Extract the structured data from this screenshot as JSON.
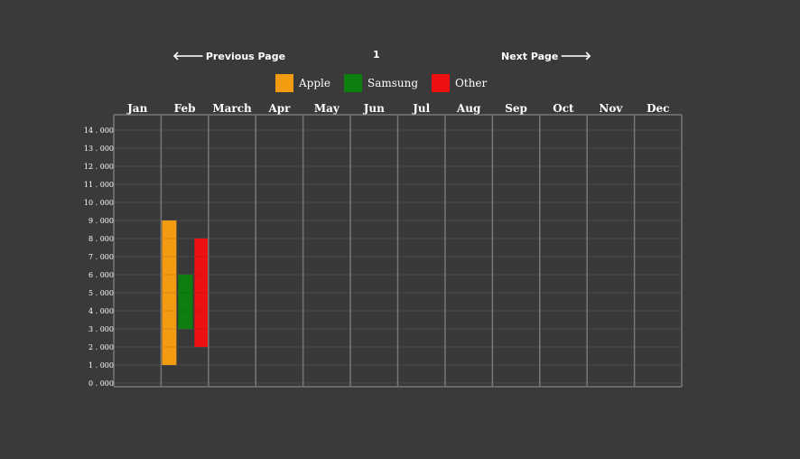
{
  "nav": {
    "prev_label": "Previous Page",
    "next_label": "Next Page",
    "page_number": "1",
    "prev_arrow": "🡐",
    "next_arrow": "🡒"
  },
  "colors": {
    "background": "#3a3a3a",
    "grid": "#777777",
    "subgrid": "#4a4a4a"
  },
  "chart_data": {
    "type": "bar",
    "categories": [
      "Jan",
      "Feb",
      "March",
      "Apr",
      "May",
      "Jun",
      "Jul",
      "Aug",
      "Sep",
      "Oct",
      "Nov",
      "Dec"
    ],
    "ylim": [
      0,
      15000
    ],
    "yticks": [
      0,
      1000,
      2000,
      3000,
      4000,
      5000,
      6000,
      7000,
      8000,
      9000,
      10000,
      11000,
      12000,
      13000,
      14000
    ],
    "ytick_labels": [
      "0 . 000",
      "1 . 000",
      "2 . 000",
      "3 . 000",
      "4 . 000",
      "5 . 000",
      "6 . 000",
      "7 . 000",
      "8 . 000",
      "9 . 000",
      "10 . 000",
      "11 . 000",
      "12 . 000",
      "13 . 000",
      "14 . 000"
    ],
    "series": [
      {
        "name": "Apple",
        "color": "#f39c12",
        "ranges": [
          {
            "category": "Feb",
            "low": 1000,
            "high": 9000
          }
        ]
      },
      {
        "name": "Samsung",
        "color": "#0e7f0e",
        "ranges": [
          {
            "category": "Feb",
            "low": 3000,
            "high": 6000
          }
        ]
      },
      {
        "name": "Other",
        "color": "#ee1111",
        "ranges": [
          {
            "category": "Feb",
            "low": 2000,
            "high": 8000
          }
        ]
      }
    ],
    "legend": [
      "Apple",
      "Samsung",
      "Other"
    ]
  }
}
